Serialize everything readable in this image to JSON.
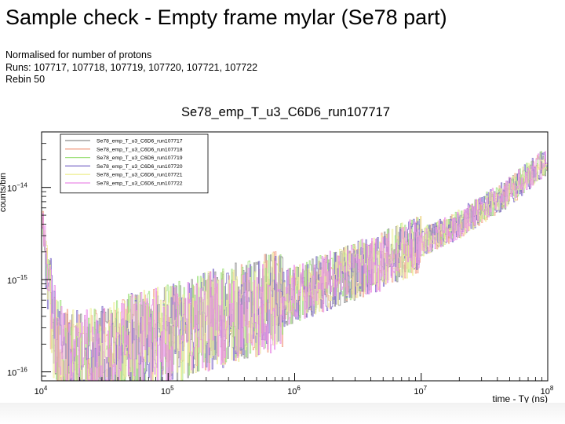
{
  "slide": {
    "title": "Sample check - Empty frame mylar (Se78 part)",
    "notes": [
      "Normalised for number of protons",
      "Runs: 107717, 107718, 107719, 107720, 107721, 107722",
      "Rebin 50"
    ]
  },
  "chart_data": {
    "type": "line",
    "title": "Se78_emp_T_u3_C6D6_run107717",
    "xlabel": "time - Tγ (ns)",
    "ylabel": "counts/bin",
    "xscale": "log",
    "yscale": "log",
    "xlim": [
      10000,
      100000000
    ],
    "ylim": [
      8e-17,
      4e-14
    ],
    "x_ticks": [
      {
        "value": 10000,
        "base": "10",
        "exp": "4"
      },
      {
        "value": 100000,
        "base": "10",
        "exp": "5"
      },
      {
        "value": 1000000,
        "base": "10",
        "exp": "6"
      },
      {
        "value": 10000000,
        "base": "10",
        "exp": "7"
      },
      {
        "value": 100000000,
        "base": "10",
        "exp": "8"
      }
    ],
    "y_ticks": [
      {
        "value": 1e-16,
        "base": "10",
        "exp": "−16"
      },
      {
        "value": 1e-15,
        "base": "10",
        "exp": "−15"
      },
      {
        "value": 1e-14,
        "base": "10",
        "exp": "−14"
      }
    ],
    "legend_position": "top-left",
    "trend": {
      "x": [
        10000,
        11000,
        12000,
        13000,
        15000,
        20000,
        30000,
        50000,
        100000,
        200000,
        500000,
        1000000,
        2000000,
        5000000,
        10000000,
        20000000,
        50000000,
        100000000
      ],
      "y": [
        6e-15,
        1.2e-15,
        4e-16,
        2e-16,
        1.5e-16,
        1.3e-16,
        1.5e-16,
        2e-16,
        2.5e-16,
        3.5e-16,
        5e-16,
        7e-16,
        1e-15,
        1.6e-15,
        2.5e-15,
        4e-15,
        9e-15,
        2e-14
      ]
    },
    "series": [
      {
        "name": "Se78_emp_T_u3_C6D6_run107717",
        "color": "#8c8c8c"
      },
      {
        "name": "Se78_emp_T_u3_C6D6_run107718",
        "color": "#f2a48c"
      },
      {
        "name": "Se78_emp_T_u3_C6D6_run107719",
        "color": "#9ee07a"
      },
      {
        "name": "Se78_emp_T_u3_C6D6_run107720",
        "color": "#7c6ac8"
      },
      {
        "name": "Se78_emp_T_u3_C6D6_run107721",
        "color": "#efef9a"
      },
      {
        "name": "Se78_emp_T_u3_C6D6_run107722",
        "color": "#e98be6"
      }
    ]
  }
}
